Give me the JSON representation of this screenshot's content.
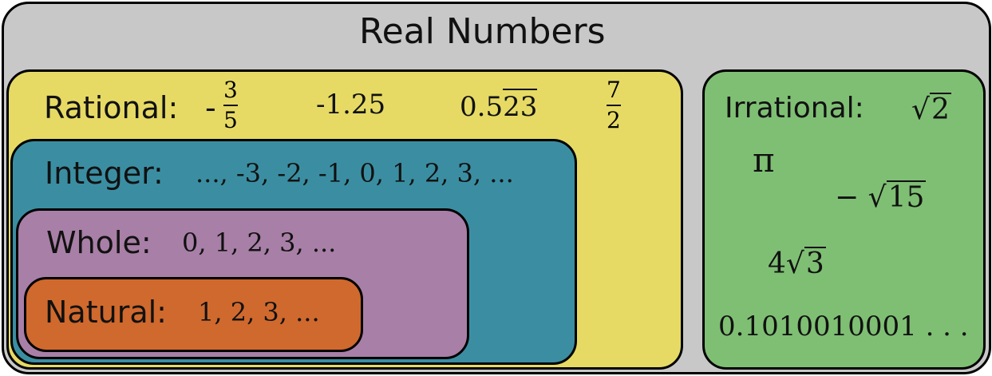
{
  "colors": {
    "real": "#c8c8c8",
    "rational": "#e6da65",
    "integer": "#3b8ea2",
    "whole": "#a87fa6",
    "natural": "#d0692d",
    "irrational": "#7fbf74"
  },
  "sets": {
    "real": {
      "title": "Real Numbers"
    },
    "rational": {
      "label": "Rational:",
      "examples": {
        "neg_sign": "-",
        "frac1_num": "3",
        "frac1_den": "5",
        "decimal": "-1.25",
        "repeat_prefix": "0.5",
        "repeat_digits": "23",
        "frac2_num": "7",
        "frac2_den": "2"
      }
    },
    "integer": {
      "label": "Integer:",
      "examples": "..., -3, -2, -1, 0, 1, 2, 3, ..."
    },
    "whole": {
      "label": "Whole:",
      "examples": "0, 1, 2, 3, ..."
    },
    "natural": {
      "label": "Natural:",
      "examples": "1, 2, 3, ..."
    },
    "irrational": {
      "label": "Irrational:",
      "examples": {
        "sqrt2_symbol": "√",
        "sqrt2_radicand": "2",
        "pi": "π",
        "neg_sqrt15_sign": "−",
        "sqrt15_symbol": "√",
        "sqrt15_radicand": "15",
        "coef": "4",
        "sqrt3_symbol": "√",
        "sqrt3_radicand": "3",
        "decimal": "0.1010010001 . . ."
      }
    }
  }
}
